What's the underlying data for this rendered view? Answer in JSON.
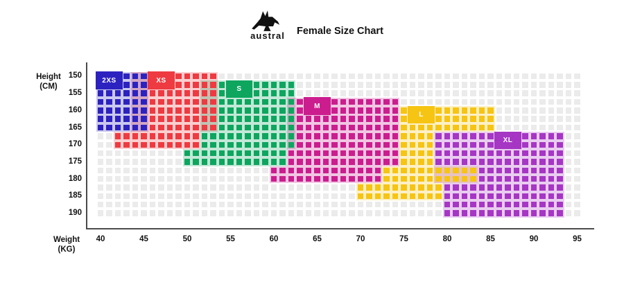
{
  "header": {
    "brand": "austral",
    "title": "Female Size Chart",
    "logo_icon": "kangaroo-logo-icon"
  },
  "axes": {
    "y_title": "Height\n(CM)",
    "x_title": "Weight\n(KG)",
    "y_ticks": [
      "150",
      "155",
      "160",
      "165",
      "170",
      "175",
      "180",
      "185",
      "190"
    ],
    "x_ticks": [
      "40",
      "45",
      "50",
      "55",
      "60",
      "65",
      "70",
      "75",
      "80",
      "85",
      "90",
      "95"
    ],
    "axis_color": "#4a4a4a"
  },
  "grid": {
    "rows": 17,
    "col_min": 40,
    "col_max": 95,
    "empty_cell_color": "#ebebeb",
    "bg_opacity": 0.25
  },
  "chart_data": {
    "type": "heatmap",
    "title": "Female Size Chart",
    "xlabel": "Weight (KG)",
    "ylabel": "Height (CM)",
    "x_range": [
      40,
      95
    ],
    "y_range": [
      150,
      190
    ],
    "x_ticks": [
      40,
      45,
      50,
      55,
      60,
      65,
      70,
      75,
      80,
      85,
      90,
      95
    ],
    "y_ticks": [
      150,
      155,
      160,
      165,
      170,
      175,
      180,
      185,
      190
    ],
    "sizes_summary": [
      {
        "size": "2XS",
        "weight_kg": [
          40,
          45
        ],
        "height_cm": [
          150,
          165
        ]
      },
      {
        "size": "XS",
        "weight_kg": [
          42,
          53
        ],
        "height_cm": [
          150,
          170
        ]
      },
      {
        "size": "S",
        "weight_kg": [
          50,
          62
        ],
        "height_cm": [
          152,
          175
        ]
      },
      {
        "size": "M",
        "weight_kg": [
          60,
          74
        ],
        "height_cm": [
          157,
          180
        ]
      },
      {
        "size": "L",
        "weight_kg": [
          70,
          85
        ],
        "height_cm": [
          160,
          185
        ]
      },
      {
        "size": "XL",
        "weight_kg": [
          79,
          93
        ],
        "height_cm": [
          167,
          190
        ]
      }
    ]
  },
  "sizes": [
    {
      "label": "2XS",
      "color": "#2c22c0",
      "badge": {
        "r1": 1,
        "r2": 2,
        "c1": 40,
        "c2": 42
      },
      "spans": [
        {
          "r1": 1,
          "r2": 7,
          "c1": 40,
          "c2": 45
        }
      ]
    },
    {
      "label": "XS",
      "color": "#ee3a41",
      "badge": {
        "r1": 1,
        "r2": 2,
        "c1": 46,
        "c2": 48
      },
      "spans": [
        {
          "r1": 1,
          "r2": 7,
          "c1": 44,
          "c2": 53
        },
        {
          "r1": 8,
          "r2": 9,
          "c1": 42,
          "c2": 51
        }
      ]
    },
    {
      "label": "S",
      "color": "#0ea55f",
      "badge": {
        "r1": 2,
        "r2": 3,
        "c1": 55,
        "c2": 57
      },
      "spans": [
        {
          "r1": 2,
          "r2": 9,
          "c1": 52,
          "c2": 62
        },
        {
          "r1": 10,
          "r2": 11,
          "c1": 50,
          "c2": 61
        }
      ]
    },
    {
      "label": "M",
      "color": "#cb1d8e",
      "badge": {
        "r1": 4,
        "r2": 5,
        "c1": 64,
        "c2": 66
      },
      "spans": [
        {
          "r1": 4,
          "r2": 11,
          "c1": 62,
          "c2": 74
        },
        {
          "r1": 12,
          "r2": 13,
          "c1": 60,
          "c2": 72
        }
      ]
    },
    {
      "label": "L",
      "color": "#f6c413",
      "badge": {
        "r1": 5,
        "r2": 6,
        "c1": 76,
        "c2": 78
      },
      "spans": [
        {
          "r1": 5,
          "r2": 7,
          "c1": 75,
          "c2": 85
        },
        {
          "r1": 8,
          "r2": 11,
          "c1": 75,
          "c2": 78
        },
        {
          "r1": 12,
          "r2": 13,
          "c1": 73,
          "c2": 83
        },
        {
          "r1": 14,
          "r2": 15,
          "c1": 70,
          "c2": 79
        }
      ]
    },
    {
      "label": "XL",
      "color": "#a636c4",
      "badge": {
        "r1": 8,
        "r2": 9,
        "c1": 86,
        "c2": 88
      },
      "spans": [
        {
          "r1": 8,
          "r2": 13,
          "c1": 79,
          "c2": 93
        },
        {
          "r1": 14,
          "r2": 17,
          "c1": 80,
          "c2": 93
        }
      ]
    }
  ]
}
